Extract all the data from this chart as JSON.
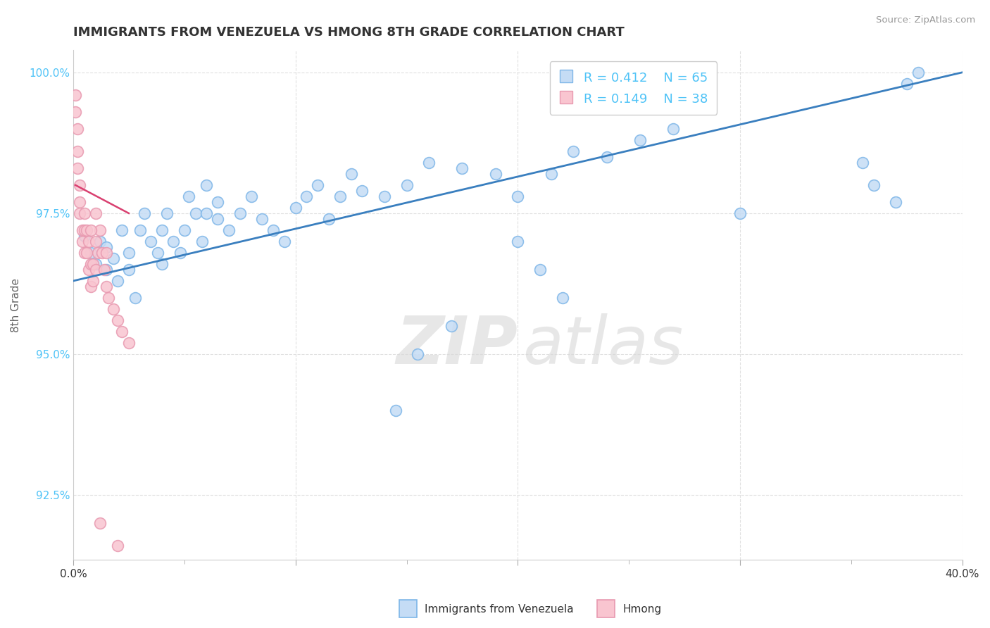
{
  "title": "IMMIGRANTS FROM VENEZUELA VS HMONG 8TH GRADE CORRELATION CHART",
  "source_text": "Source: ZipAtlas.com",
  "ylabel": "8th Grade",
  "watermark_zip": "ZIP",
  "watermark_atlas": "atlas",
  "xlim": [
    0.0,
    0.4
  ],
  "ylim": [
    0.9135,
    1.004
  ],
  "color_blue_fill": "#C5DCF5",
  "color_blue_edge": "#7EB6E8",
  "color_blue_line": "#3A7FBF",
  "color_pink_fill": "#F9C5D0",
  "color_pink_edge": "#E899B0",
  "color_pink_line": "#D94070",
  "legend_text_color": "#4FC3F7",
  "ytick_color": "#4FC3F7",
  "background_color": "#FFFFFF",
  "grid_color": "#DDDDDD",
  "blue_x": [
    0.005,
    0.008,
    0.01,
    0.012,
    0.015,
    0.015,
    0.018,
    0.02,
    0.022,
    0.025,
    0.025,
    0.028,
    0.03,
    0.032,
    0.035,
    0.038,
    0.04,
    0.04,
    0.042,
    0.045,
    0.048,
    0.05,
    0.052,
    0.055,
    0.058,
    0.06,
    0.06,
    0.065,
    0.065,
    0.07,
    0.075,
    0.08,
    0.085,
    0.09,
    0.095,
    0.1,
    0.105,
    0.11,
    0.115,
    0.12,
    0.125,
    0.13,
    0.14,
    0.15,
    0.16,
    0.175,
    0.19,
    0.2,
    0.215,
    0.225,
    0.24,
    0.255,
    0.27,
    0.2,
    0.21,
    0.22,
    0.3,
    0.355,
    0.36,
    0.37,
    0.17,
    0.155,
    0.145,
    0.375,
    0.38
  ],
  "blue_y": [
    0.971,
    0.968,
    0.966,
    0.97,
    0.965,
    0.969,
    0.967,
    0.963,
    0.972,
    0.968,
    0.965,
    0.96,
    0.972,
    0.975,
    0.97,
    0.968,
    0.966,
    0.972,
    0.975,
    0.97,
    0.968,
    0.972,
    0.978,
    0.975,
    0.97,
    0.975,
    0.98,
    0.977,
    0.974,
    0.972,
    0.975,
    0.978,
    0.974,
    0.972,
    0.97,
    0.976,
    0.978,
    0.98,
    0.974,
    0.978,
    0.982,
    0.979,
    0.978,
    0.98,
    0.984,
    0.983,
    0.982,
    0.978,
    0.982,
    0.986,
    0.985,
    0.988,
    0.99,
    0.97,
    0.965,
    0.96,
    0.975,
    0.984,
    0.98,
    0.977,
    0.955,
    0.95,
    0.94,
    0.998,
    1.0
  ],
  "pink_x": [
    0.001,
    0.001,
    0.002,
    0.002,
    0.002,
    0.003,
    0.003,
    0.003,
    0.004,
    0.004,
    0.005,
    0.005,
    0.005,
    0.006,
    0.006,
    0.007,
    0.007,
    0.008,
    0.008,
    0.009,
    0.009,
    0.01,
    0.01,
    0.011,
    0.012,
    0.013,
    0.014,
    0.015,
    0.016,
    0.018,
    0.02,
    0.022,
    0.025,
    0.01,
    0.015,
    0.008,
    0.012,
    0.02
  ],
  "pink_y": [
    0.996,
    0.993,
    0.99,
    0.986,
    0.983,
    0.98,
    0.977,
    0.975,
    0.972,
    0.97,
    0.975,
    0.972,
    0.968,
    0.968,
    0.972,
    0.97,
    0.965,
    0.966,
    0.962,
    0.963,
    0.966,
    0.97,
    0.965,
    0.968,
    0.972,
    0.968,
    0.965,
    0.962,
    0.96,
    0.958,
    0.956,
    0.954,
    0.952,
    0.975,
    0.968,
    0.972,
    0.92,
    0.916
  ],
  "blue_line_x": [
    0.0,
    0.4
  ],
  "blue_line_y": [
    0.963,
    1.0
  ],
  "pink_line_x": [
    0.001,
    0.025
  ],
  "pink_line_y": [
    0.98,
    0.975
  ]
}
